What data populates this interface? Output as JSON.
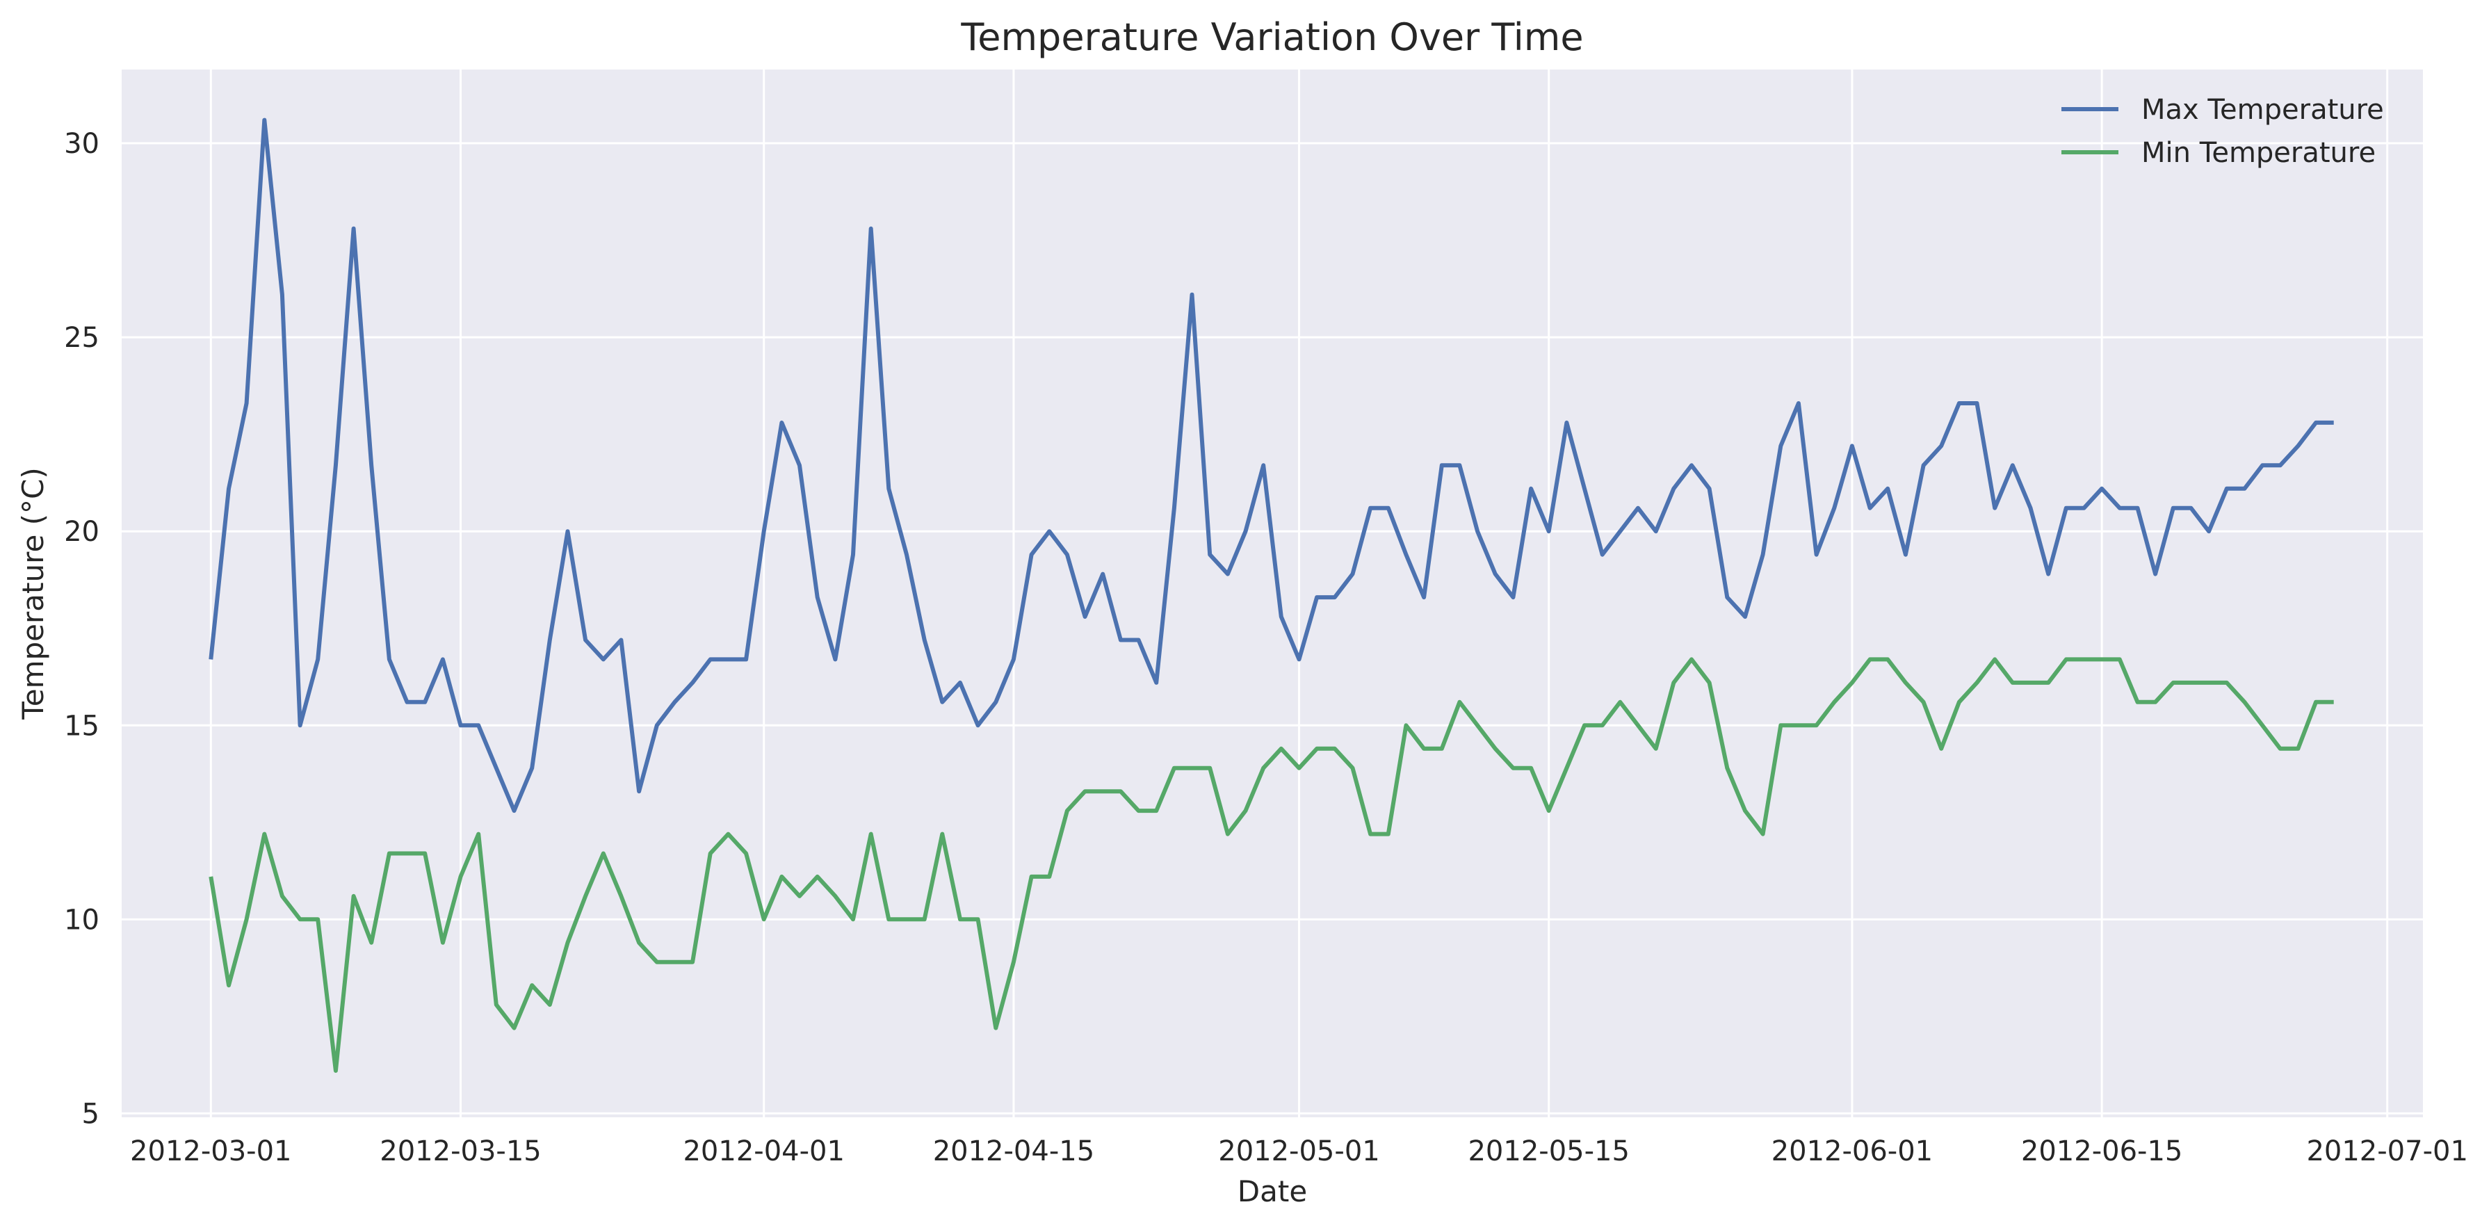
{
  "chart_data": {
    "type": "line",
    "title": "Temperature Variation Over Time",
    "xlabel": "Date",
    "ylabel": "Temperature (°C)",
    "xlim": [
      "2012-02-25",
      "2012-07-03"
    ],
    "ylim": [
      4.9,
      31.9
    ],
    "x_ticks": [
      "2012-03-01",
      "2012-03-15",
      "2012-04-01",
      "2012-04-15",
      "2012-05-01",
      "2012-05-15",
      "2012-06-01",
      "2012-06-15",
      "2012-07-01"
    ],
    "y_ticks": [
      5,
      10,
      15,
      20,
      25,
      30
    ],
    "grid": true,
    "legend": "top-right",
    "x_start": "2012-03-01",
    "x_end": "2012-06-29",
    "colors": {
      "background": "#eaeaf2",
      "grid": "#ffffff",
      "Max Temperature": "#4c72b0",
      "Min Temperature": "#55a868"
    },
    "series": [
      {
        "name": "Max Temperature",
        "values": [
          16.7,
          21.1,
          23.3,
          30.6,
          26.1,
          15.0,
          16.7,
          21.7,
          27.8,
          21.7,
          16.7,
          15.6,
          15.6,
          16.7,
          15.0,
          15.0,
          13.9,
          12.8,
          13.9,
          17.2,
          20.0,
          17.2,
          16.7,
          17.2,
          13.3,
          15.0,
          15.6,
          16.1,
          16.7,
          16.7,
          16.7,
          20.0,
          22.8,
          21.7,
          18.3,
          16.7,
          19.4,
          27.8,
          21.1,
          19.4,
          17.2,
          15.6,
          16.1,
          15.0,
          15.6,
          16.7,
          19.4,
          20.0,
          19.4,
          17.8,
          18.9,
          17.2,
          17.2,
          16.1,
          20.6,
          26.1,
          19.4,
          18.9,
          20.0,
          21.7,
          17.8,
          16.7,
          18.3,
          18.3,
          18.9,
          20.6,
          20.6,
          19.4,
          18.3,
          21.7,
          21.7,
          20.0,
          18.9,
          18.3,
          21.1,
          20.0,
          22.8,
          21.1,
          19.4,
          20.0,
          20.6,
          20.0,
          21.1,
          21.7,
          21.1,
          18.3,
          17.8,
          19.4,
          22.2,
          23.3,
          19.4,
          20.6,
          22.2,
          20.6,
          21.1,
          19.4,
          21.7,
          22.2,
          23.3,
          23.3,
          20.6,
          21.7,
          20.6,
          18.9,
          20.6,
          20.6,
          21.1,
          20.6,
          20.6,
          18.9,
          20.6,
          20.6,
          20.0,
          21.1,
          21.1,
          21.7,
          21.7,
          22.2,
          22.8,
          22.8
        ]
      },
      {
        "name": "Min Temperature",
        "values": [
          11.1,
          8.3,
          10.0,
          12.2,
          10.6,
          10.0,
          10.0,
          6.1,
          10.6,
          9.4,
          11.7,
          11.7,
          11.7,
          9.4,
          11.1,
          12.2,
          7.8,
          7.2,
          8.3,
          7.8,
          9.4,
          10.6,
          11.7,
          10.6,
          9.4,
          8.9,
          8.9,
          8.9,
          11.7,
          12.2,
          11.7,
          10.0,
          11.1,
          10.6,
          11.1,
          10.6,
          10.0,
          12.2,
          10.0,
          10.0,
          10.0,
          12.2,
          10.0,
          10.0,
          7.2,
          8.9,
          11.1,
          11.1,
          12.8,
          13.3,
          13.3,
          13.3,
          12.8,
          12.8,
          13.9,
          13.9,
          13.9,
          12.2,
          12.8,
          13.9,
          14.4,
          13.9,
          14.4,
          14.4,
          13.9,
          12.2,
          12.2,
          15.0,
          14.4,
          14.4,
          15.6,
          15.0,
          14.4,
          13.9,
          13.9,
          12.8,
          13.9,
          15.0,
          15.0,
          15.6,
          15.0,
          14.4,
          16.1,
          16.7,
          16.1,
          13.9,
          12.8,
          12.2,
          15.0,
          15.0,
          15.0,
          15.6,
          16.1,
          16.7,
          16.7,
          16.1,
          15.6,
          14.4,
          15.6,
          16.1,
          16.7,
          16.1,
          16.1,
          16.1,
          16.7,
          16.7,
          16.7,
          16.7,
          15.6,
          15.6,
          16.1,
          16.1,
          16.1,
          16.1,
          15.6,
          15.0,
          14.4,
          14.4,
          15.6,
          15.6
        ]
      }
    ]
  }
}
